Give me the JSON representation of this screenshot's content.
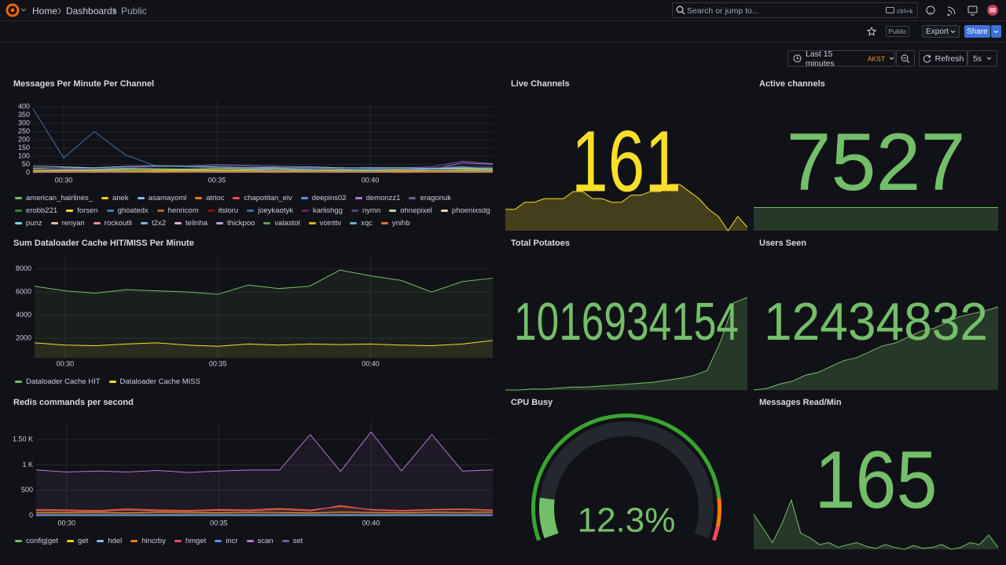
{
  "header": {
    "breadcrumbs": [
      "Home",
      "Dashboards",
      "Public"
    ],
    "search": "Search or jump to...",
    "shortcut": "ctrl+k"
  },
  "toolbar": {
    "public": "Public",
    "export": "Export",
    "share": "Share",
    "time_range": "Last 15 minutes",
    "timezone": "AKST",
    "refresh": "Refresh",
    "interval": "5s"
  },
  "chart_data": [
    {
      "type": "line",
      "title": "Messages Per Minute Per Channel",
      "fill": false,
      "x": [
        "00:29",
        "00:30",
        "00:31",
        "00:32",
        "00:33",
        "00:34",
        "00:35",
        "00:36",
        "00:37",
        "00:38",
        "00:39",
        "00:40",
        "00:41",
        "00:42",
        "00:43",
        "00:44"
      ],
      "xticks": [
        "00:30",
        "00:35",
        "00:40"
      ],
      "ylim": [
        0,
        440
      ],
      "yticks": [
        0,
        50,
        100,
        150,
        200,
        250,
        300,
        350,
        400
      ],
      "series": [
        {
          "name": "american_hairlines_",
          "color": "#73bf69",
          "values": [
            10,
            12,
            15,
            14,
            12,
            10,
            12,
            14,
            15,
            13,
            12,
            14,
            12,
            10,
            12,
            14
          ]
        },
        {
          "name": "anek",
          "color": "#f2cc0c",
          "values": [
            25,
            30,
            28,
            26,
            24,
            22,
            25,
            28,
            26,
            24,
            22,
            20,
            22,
            25,
            24,
            22
          ]
        },
        {
          "name": "asamayoml",
          "color": "#8ab8ff",
          "values": [
            5,
            6,
            5,
            4,
            5,
            6,
            5,
            5,
            4,
            5,
            6,
            5,
            4,
            5,
            6,
            5
          ]
        },
        {
          "name": "atrioc",
          "color": "#ff780a",
          "values": [
            8,
            10,
            9,
            8,
            10,
            12,
            10,
            9,
            8,
            10,
            12,
            14,
            16,
            18,
            20,
            15
          ]
        },
        {
          "name": "chapotitan_eiv",
          "color": "#f2495c",
          "values": [
            3,
            4,
            3,
            4,
            5,
            4,
            3,
            4,
            5,
            4,
            3,
            4,
            5,
            4,
            3,
            4
          ]
        },
        {
          "name": "deepins02",
          "color": "#5794f2",
          "values": [
            12,
            15,
            18,
            20,
            22,
            20,
            18,
            16,
            15,
            18,
            20,
            22,
            25,
            28,
            35,
            20
          ]
        },
        {
          "name": "demonzz1",
          "color": "#b877d9",
          "values": [
            6,
            8,
            7,
            6,
            8,
            10,
            12,
            14,
            12,
            10,
            8,
            6,
            8,
            20,
            60,
            50
          ]
        },
        {
          "name": "eragonuk",
          "color": "#705da0",
          "values": [
            30,
            28,
            25,
            35,
            40,
            38,
            45,
            40,
            35,
            30,
            28,
            32,
            30,
            35,
            70,
            55
          ]
        },
        {
          "name": "erobb221",
          "color": "#37872d",
          "values": [
            4,
            5,
            4,
            5,
            6,
            5,
            4,
            5,
            6,
            5,
            4,
            5,
            6,
            5,
            4,
            5
          ]
        },
        {
          "name": "forsen",
          "color": "#fade2a",
          "values": [
            15,
            18,
            20,
            22,
            18,
            16,
            18,
            20,
            22,
            20,
            18,
            16,
            20,
            22,
            25,
            20
          ]
        },
        {
          "name": "ghoatedx",
          "color": "#447ebc",
          "values": [
            2,
            3,
            2,
            3,
            2,
            3,
            2,
            3,
            2,
            3,
            2,
            3,
            2,
            3,
            2,
            3
          ]
        },
        {
          "name": "henricom",
          "color": "#c15c17",
          "values": [
            5,
            4,
            5,
            6,
            5,
            4,
            5,
            6,
            5,
            4,
            5,
            6,
            5,
            4,
            5,
            6
          ]
        },
        {
          "name": "itsloru",
          "color": "#890f02",
          "values": [
            3,
            2,
            3,
            4,
            3,
            2,
            3,
            4,
            3,
            2,
            3,
            4,
            3,
            2,
            3,
            4
          ]
        },
        {
          "name": "joeykaotyk",
          "color": "#3f6ea8",
          "values": [
            390,
            90,
            250,
            110,
            40,
            35,
            30,
            30,
            25,
            25,
            20,
            20,
            25,
            20,
            20,
            15
          ]
        },
        {
          "name": "karlishgg",
          "color": "#6d1f62",
          "values": [
            2,
            2,
            3,
            2,
            2,
            3,
            2,
            2,
            3,
            2,
            2,
            3,
            2,
            2,
            3,
            2
          ]
        },
        {
          "name": "nymn",
          "color": "#584477",
          "values": [
            20,
            22,
            25,
            30,
            35,
            40,
            50,
            45,
            40,
            35,
            30,
            28,
            25,
            30,
            40,
            35
          ]
        },
        {
          "name": "ohnepixel",
          "color": "#b7dbab",
          "values": [
            8,
            10,
            12,
            10,
            8,
            10,
            12,
            10,
            8,
            10,
            12,
            10,
            8,
            10,
            12,
            10
          ]
        },
        {
          "name": "phoenixsdg",
          "color": "#f4d598",
          "values": [
            6,
            5,
            6,
            7,
            6,
            5,
            6,
            7,
            6,
            5,
            6,
            7,
            6,
            5,
            6,
            7
          ]
        },
        {
          "name": "punz",
          "color": "#70dbed",
          "values": [
            4,
            5,
            4,
            3,
            4,
            5,
            4,
            3,
            4,
            5,
            4,
            3,
            4,
            5,
            4,
            3
          ]
        },
        {
          "name": "renyan",
          "color": "#f9ba8f",
          "values": [
            5,
            6,
            7,
            6,
            5,
            6,
            7,
            6,
            5,
            6,
            7,
            6,
            5,
            6,
            7,
            6
          ]
        },
        {
          "name": "rockoutli",
          "color": "#f29191",
          "values": [
            3,
            4,
            3,
            4,
            3,
            4,
            3,
            4,
            3,
            4,
            3,
            4,
            3,
            4,
            3,
            4
          ]
        },
        {
          "name": "t2x2",
          "color": "#82b5d8",
          "values": [
            40,
            35,
            30,
            38,
            42,
            40,
            35,
            30,
            32,
            35,
            30,
            28,
            30,
            25,
            30,
            28
          ]
        },
        {
          "name": "telinha",
          "color": "#e5a8e2",
          "values": [
            2,
            3,
            4,
            3,
            2,
            3,
            4,
            3,
            2,
            3,
            4,
            3,
            2,
            3,
            4,
            3
          ]
        },
        {
          "name": "thickpoo",
          "color": "#aea2e0",
          "values": [
            5,
            6,
            5,
            6,
            5,
            6,
            5,
            6,
            5,
            6,
            5,
            6,
            5,
            6,
            5,
            6
          ]
        },
        {
          "name": "valastol",
          "color": "#629e51",
          "values": [
            6,
            7,
            8,
            7,
            6,
            7,
            8,
            7,
            6,
            7,
            8,
            7,
            6,
            7,
            8,
            7
          ]
        },
        {
          "name": "vointtv",
          "color": "#e5ac0e",
          "values": [
            10,
            12,
            14,
            12,
            10,
            12,
            14,
            12,
            10,
            12,
            14,
            12,
            10,
            12,
            14,
            12
          ]
        },
        {
          "name": "xqc",
          "color": "#64b0c8",
          "values": [
            15,
            18,
            20,
            25,
            22,
            20,
            18,
            22,
            25,
            20,
            18,
            15,
            18,
            22,
            20,
            18
          ]
        },
        {
          "name": "ynihb",
          "color": "#e0752d",
          "values": [
            3,
            4,
            5,
            4,
            3,
            4,
            5,
            4,
            3,
            4,
            5,
            4,
            3,
            4,
            5,
            4
          ]
        }
      ]
    },
    {
      "type": "stat",
      "title": "Live Channels",
      "value": 161,
      "color": "#fade2a",
      "sparkline": [
        158,
        158,
        160,
        160,
        161,
        161,
        161,
        163,
        163,
        161,
        161,
        160,
        160,
        162,
        162,
        163,
        163,
        165,
        165,
        163,
        161,
        158,
        156,
        152,
        156,
        153
      ]
    },
    {
      "type": "stat",
      "title": "Active channels",
      "value": 7527,
      "color": "#73bf69",
      "sparkline": [
        7527,
        7527,
        7527,
        7527,
        7527,
        7527,
        7527,
        7527
      ]
    },
    {
      "type": "line",
      "title": "Sum Dataloader Cache HIT/MISS Per Minute",
      "fill": true,
      "x": [
        "00:29",
        "00:30",
        "00:31",
        "00:32",
        "00:33",
        "00:34",
        "00:35",
        "00:36",
        "00:37",
        "00:38",
        "00:39",
        "00:40",
        "00:41",
        "00:42",
        "00:43",
        "00:44"
      ],
      "xticks": [
        "00:30",
        "00:35",
        "00:40"
      ],
      "ylim": [
        300,
        9200
      ],
      "yticks": [
        2000,
        4000,
        6000,
        8000
      ],
      "series": [
        {
          "name": "Dataloader Cache HIT",
          "color": "#73bf69",
          "values": [
            6500,
            6100,
            5900,
            6200,
            6100,
            6000,
            5800,
            6600,
            6300,
            6500,
            7900,
            7400,
            7000,
            6000,
            6900,
            7200
          ]
        },
        {
          "name": "Dataloader Cache MISS",
          "color": "#fade2a",
          "values": [
            1600,
            1400,
            1350,
            1500,
            1600,
            1400,
            1300,
            1500,
            1400,
            1500,
            1450,
            1500,
            1400,
            1350,
            1500,
            1800
          ]
        }
      ]
    },
    {
      "type": "stat",
      "title": "Total Potatoes",
      "value": 1016934154,
      "color": "#73bf69",
      "sparkline": [
        1016933200,
        1016933200,
        1016933210,
        1016933210,
        1016933220,
        1016933230,
        1016933230,
        1016933240,
        1016933250,
        1016933260,
        1016933270,
        1016933280,
        1016933300,
        1016933320,
        1016933350,
        1016933400,
        1016933700,
        1016934100,
        1016934154
      ]
    },
    {
      "type": "stat",
      "title": "Users Seen",
      "value": 12434832,
      "color": "#73bf69",
      "sparkline": [
        12432000,
        12432050,
        12432200,
        12432300,
        12432500,
        12432600,
        12432800,
        12433000,
        12433100,
        12433300,
        12433500,
        12433600,
        12433800,
        12434000,
        12434100,
        12434300,
        12434500,
        12434600,
        12434700,
        12434832
      ]
    },
    {
      "type": "line",
      "title": "Redis commands per second",
      "fill": true,
      "x": [
        "00:29",
        "00:30",
        "00:31",
        "00:32",
        "00:33",
        "00:34",
        "00:35",
        "00:36",
        "00:37",
        "00:38",
        "00:39",
        "00:40",
        "00:41",
        "00:42",
        "00:43",
        "00:44"
      ],
      "xticks": [
        "00:30",
        "00:35",
        "00:40"
      ],
      "ylim": [
        0,
        1890
      ],
      "yticks": [
        0,
        500,
        {
          "value": 1000,
          "label": "1 K"
        },
        {
          "value": 1500,
          "label": "1.50 K"
        }
      ],
      "series": [
        {
          "name": "config|get",
          "color": "#73bf69",
          "values": [
            0,
            0,
            0,
            0,
            0,
            0,
            0,
            0,
            0,
            0,
            0,
            0,
            0,
            0,
            0,
            0
          ]
        },
        {
          "name": "get",
          "color": "#f2cc0c",
          "values": [
            60,
            55,
            65,
            50,
            70,
            60,
            55,
            65,
            60,
            50,
            70,
            60,
            55,
            65,
            60,
            70
          ]
        },
        {
          "name": "hdel",
          "color": "#8ab8ff",
          "values": [
            5,
            6,
            5,
            4,
            5,
            6,
            5,
            5,
            4,
            5,
            6,
            5,
            4,
            5,
            6,
            5
          ]
        },
        {
          "name": "hincrby",
          "color": "#ff780a",
          "values": [
            120,
            110,
            100,
            130,
            110,
            100,
            120,
            110,
            140,
            110,
            180,
            120,
            100,
            120,
            130,
            110
          ]
        },
        {
          "name": "hmget",
          "color": "#f2495c",
          "values": [
            100,
            90,
            80,
            110,
            95,
            85,
            100,
            95,
            120,
            90,
            200,
            110,
            90,
            110,
            120,
            100
          ]
        },
        {
          "name": "incr",
          "color": "#5794f2",
          "values": [
            10,
            12,
            11,
            10,
            12,
            11,
            10,
            12,
            11,
            10,
            12,
            11,
            10,
            12,
            11,
            10
          ]
        },
        {
          "name": "scan",
          "color": "#b877d9",
          "values": [
            900,
            860,
            880,
            860,
            890,
            850,
            880,
            900,
            900,
            1600,
            870,
            1650,
            880,
            1600,
            880,
            900
          ]
        },
        {
          "name": "set",
          "color": "#705da0",
          "values": [
            30,
            25,
            28,
            30,
            26,
            28,
            30,
            25,
            28,
            30,
            26,
            28,
            30,
            25,
            28,
            30
          ]
        }
      ]
    },
    {
      "type": "gauge",
      "title": "CPU Busy",
      "value": 12.3,
      "value_label": "12.3%",
      "color": "#73bf69",
      "range": [
        0,
        100
      ],
      "thresholds": [
        {
          "value": 0,
          "color": "#37a62d"
        },
        {
          "value": 88,
          "color": "#ff780a"
        },
        {
          "value": 96,
          "color": "#f2495c"
        }
      ]
    },
    {
      "type": "stat",
      "title": "Messages Read/Min",
      "value": 165,
      "color": "#73bf69",
      "sparkline": [
        150,
        135,
        120,
        140,
        165,
        130,
        125,
        118,
        120,
        115,
        118,
        120,
        116,
        114,
        118,
        115,
        113,
        117,
        114,
        115,
        118,
        113,
        115,
        120,
        118,
        128,
        115
      ]
    }
  ]
}
